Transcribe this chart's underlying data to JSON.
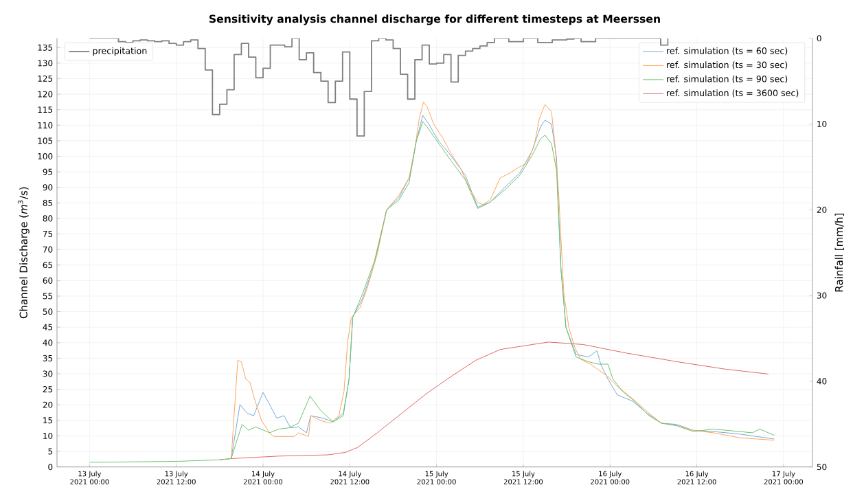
{
  "chart_data": {
    "type": "line",
    "title": "Sensitivity analysis channel discharge for different timesteps at Meerssen",
    "ylabel": "Channel Discharge (*m*$^{3}$/s)",
    "y2label": "Rainfall [mm/h]",
    "xlim": [
      "2021-07-12T19:30",
      "2021-07-17T04:00"
    ],
    "xticks": [
      {
        "value": "2021-07-13T00:00",
        "label": "13 July 2021 00:00"
      },
      {
        "value": "2021-07-13T12:00",
        "label": "13 July 2021 12:00"
      },
      {
        "value": "2021-07-14T00:00",
        "label": "14 July 2021 00:00"
      },
      {
        "value": "2021-07-14T12:00",
        "label": "14 July 2021 12:00"
      },
      {
        "value": "2021-07-15T00:00",
        "label": "15 July 2021 00:00"
      },
      {
        "value": "2021-07-15T12:00",
        "label": "15 July 2021 12:00"
      },
      {
        "value": "2021-07-16T00:00",
        "label": "16 July 2021 00:00"
      },
      {
        "value": "2021-07-16T12:00",
        "label": "16 July 2021 12:00"
      },
      {
        "value": "2021-07-17T00:00",
        "label": "17 July 2021 00:00"
      }
    ],
    "ylim": [
      0,
      138
    ],
    "yticks": [
      0,
      5,
      10,
      15,
      20,
      25,
      30,
      35,
      40,
      45,
      50,
      55,
      60,
      65,
      70,
      75,
      80,
      85,
      90,
      95,
      100,
      105,
      110,
      115,
      120,
      125,
      130,
      135
    ],
    "y2lim": [
      50,
      0
    ],
    "y2ticks": [
      0,
      10,
      20,
      30,
      40,
      50
    ],
    "grid": true,
    "legend": "top right",
    "series": [
      {
        "name": "precipitation",
        "type": "step",
        "axis": "y2",
        "color": "#808080",
        "x": [
          "2021-07-13T00:00",
          "2021-07-13T01:00",
          "2021-07-13T02:00",
          "2021-07-13T03:00",
          "2021-07-13T04:00",
          "2021-07-13T05:00",
          "2021-07-13T06:00",
          "2021-07-13T07:00",
          "2021-07-13T08:00",
          "2021-07-13T09:00",
          "2021-07-13T10:00",
          "2021-07-13T11:00",
          "2021-07-13T12:00",
          "2021-07-13T13:00",
          "2021-07-13T14:00",
          "2021-07-13T15:00",
          "2021-07-13T16:00",
          "2021-07-13T17:00",
          "2021-07-13T18:00",
          "2021-07-13T19:00",
          "2021-07-13T20:00",
          "2021-07-13T21:00",
          "2021-07-13T22:00",
          "2021-07-13T23:00",
          "2021-07-14T00:00",
          "2021-07-14T01:00",
          "2021-07-14T02:00",
          "2021-07-14T03:00",
          "2021-07-14T04:00",
          "2021-07-14T05:00",
          "2021-07-14T06:00",
          "2021-07-14T07:00",
          "2021-07-14T08:00",
          "2021-07-14T09:00",
          "2021-07-14T10:00",
          "2021-07-14T11:00",
          "2021-07-14T12:00",
          "2021-07-14T13:00",
          "2021-07-14T14:00",
          "2021-07-14T15:00",
          "2021-07-14T16:00",
          "2021-07-14T17:00",
          "2021-07-14T18:00",
          "2021-07-14T19:00",
          "2021-07-14T20:00",
          "2021-07-14T21:00",
          "2021-07-14T22:00",
          "2021-07-14T23:00",
          "2021-07-15T00:00",
          "2021-07-15T01:00",
          "2021-07-15T02:00",
          "2021-07-15T03:00",
          "2021-07-15T04:00",
          "2021-07-15T05:00",
          "2021-07-15T06:00",
          "2021-07-15T07:00",
          "2021-07-15T08:00",
          "2021-07-15T09:00",
          "2021-07-15T10:00",
          "2021-07-15T11:00",
          "2021-07-15T12:00",
          "2021-07-15T13:00",
          "2021-07-15T14:00",
          "2021-07-15T15:00",
          "2021-07-15T16:00",
          "2021-07-15T17:00",
          "2021-07-15T18:00",
          "2021-07-15T19:00",
          "2021-07-15T20:00",
          "2021-07-15T21:00",
          "2021-07-15T22:00",
          "2021-07-15T23:00",
          "2021-07-16T00:00",
          "2021-07-16T01:00",
          "2021-07-16T02:00",
          "2021-07-16T03:00",
          "2021-07-16T04:00",
          "2021-07-16T05:00",
          "2021-07-16T06:00",
          "2021-07-16T07:00",
          "2021-07-16T08:00"
        ],
        "values": [
          0,
          0,
          0,
          0,
          0.4,
          0.5,
          0.3,
          0.2,
          0.3,
          0.4,
          0.3,
          0.6,
          0.8,
          0.4,
          0.2,
          1.2,
          3.7,
          8.9,
          7.7,
          6.0,
          1.9,
          0.6,
          2.2,
          4.6,
          3.5,
          0.8,
          0.8,
          1.0,
          0,
          2.5,
          1.7,
          4.0,
          5.0,
          7.5,
          5.0,
          1.6,
          7.1,
          11.4,
          6.2,
          0.3,
          0,
          0.2,
          1.2,
          4.2,
          7.1,
          2.5,
          0.8,
          3.0,
          2.9,
          1.9,
          5.1,
          2.0,
          1.5,
          1.2,
          0.9,
          0.5,
          0,
          0,
          0.4,
          0.4,
          0,
          0,
          0.5,
          0.5,
          0.2,
          0.2,
          0.1,
          0,
          0.4,
          0.4,
          0,
          0,
          0,
          0,
          0,
          0,
          0,
          0,
          0,
          0.8,
          0
        ]
      },
      {
        "name": "ref. simulation (ts = 60 sec)",
        "color": "#74a9d8",
        "x": [
          "2021-07-13T18:00",
          "2021-07-13T19:36",
          "2021-07-13T20:48",
          "2021-07-13T21:48",
          "2021-07-13T22:42",
          "2021-07-14T00:00",
          "2021-07-14T01:00",
          "2021-07-14T01:54",
          "2021-07-14T02:54",
          "2021-07-14T03:48",
          "2021-07-14T04:54",
          "2021-07-14T06:00",
          "2021-07-14T06:36",
          "2021-07-14T08:18",
          "2021-07-14T09:42",
          "2021-07-14T11:06",
          "2021-07-14T11:54",
          "2021-07-14T12:24",
          "2021-07-14T13:48",
          "2021-07-14T15:24",
          "2021-07-14T17:06",
          "2021-07-14T18:48",
          "2021-07-14T20:12",
          "2021-07-14T21:12",
          "2021-07-14T22:06",
          "2021-07-14T22:54",
          "2021-07-15T00:18",
          "2021-07-15T02:00",
          "2021-07-15T04:00",
          "2021-07-15T05:42",
          "2021-07-15T07:24",
          "2021-07-15T09:24",
          "2021-07-15T11:30",
          "2021-07-15T13:12",
          "2021-07-15T14:24",
          "2021-07-15T15:00",
          "2021-07-15T15:54",
          "2021-07-15T16:36",
          "2021-07-15T17:12",
          "2021-07-15T17:54",
          "2021-07-15T19:18",
          "2021-07-15T21:00",
          "2021-07-15T22:12",
          "2021-07-15T22:42",
          "2021-07-15T23:42",
          "2021-07-16T01:00",
          "2021-07-16T03:06",
          "2021-07-16T05:06",
          "2021-07-16T07:06",
          "2021-07-16T09:12",
          "2021-07-16T11:30",
          "2021-07-16T14:18",
          "2021-07-16T17:54",
          "2021-07-16T22:42"
        ],
        "values": [
          2.3,
          2.7,
          20.1,
          17.3,
          16.5,
          24.0,
          19.7,
          15.7,
          16.5,
          12.6,
          12.9,
          11.0,
          16.5,
          15.7,
          14.5,
          17.3,
          28.3,
          48.1,
          54.4,
          65.4,
          82.8,
          86.7,
          93.0,
          104.9,
          113.2,
          110.4,
          104.9,
          100.2,
          93.8,
          83.6,
          85.2,
          89.9,
          94.6,
          101.7,
          109.6,
          111.6,
          110.4,
          99.4,
          63.9,
          44.9,
          36.2,
          35.4,
          37.4,
          33.1,
          28.3,
          23.2,
          21.2,
          17.3,
          14.1,
          13.7,
          11.8,
          11.4,
          10.6,
          9.0
        ]
      },
      {
        "name": "ref. simulation (ts = 30 sec)",
        "color": "#ffa55c",
        "x": [
          "2021-07-13T18:00",
          "2021-07-13T19:36",
          "2021-07-13T20:30",
          "2021-07-13T21:00",
          "2021-07-13T21:36",
          "2021-07-13T22:12",
          "2021-07-13T22:48",
          "2021-07-13T23:48",
          "2021-07-14T00:54",
          "2021-07-14T01:30",
          "2021-07-14T04:18",
          "2021-07-14T04:54",
          "2021-07-14T06:18",
          "2021-07-14T06:36",
          "2021-07-14T08:00",
          "2021-07-14T09:18",
          "2021-07-14T10:30",
          "2021-07-14T11:12",
          "2021-07-14T11:42",
          "2021-07-14T12:12",
          "2021-07-14T13:24",
          "2021-07-14T14:24",
          "2021-07-14T15:48",
          "2021-07-14T17:06",
          "2021-07-14T18:48",
          "2021-07-14T20:12",
          "2021-07-14T20:54",
          "2021-07-14T21:36",
          "2021-07-14T22:12",
          "2021-07-14T22:42",
          "2021-07-14T23:36",
          "2021-07-15T00:54",
          "2021-07-15T02:00",
          "2021-07-15T03:18",
          "2021-07-15T04:42",
          "2021-07-15T05:42",
          "2021-07-15T06:24",
          "2021-07-15T07:24",
          "2021-07-15T08:48",
          "2021-07-15T10:06",
          "2021-07-15T11:30",
          "2021-07-15T12:30",
          "2021-07-15T13:30",
          "2021-07-15T14:12",
          "2021-07-15T15:00",
          "2021-07-15T15:54",
          "2021-07-15T16:24",
          "2021-07-15T16:54",
          "2021-07-15T17:36",
          "2021-07-15T18:18",
          "2021-07-15T19:06",
          "2021-07-15T19:54",
          "2021-07-15T21:18",
          "2021-07-15T23:42",
          "2021-07-16T01:00",
          "2021-07-16T03:06",
          "2021-07-16T05:24",
          "2021-07-16T07:06",
          "2021-07-16T09:12",
          "2021-07-16T11:30",
          "2021-07-16T14:18",
          "2021-07-16T17:54",
          "2021-07-16T22:42"
        ],
        "values": [
          2.3,
          2.7,
          34.3,
          33.9,
          28.3,
          27.2,
          22.0,
          14.9,
          11.0,
          9.8,
          9.8,
          11.0,
          9.8,
          16.5,
          14.9,
          14.1,
          16.5,
          24.4,
          40.2,
          48.1,
          51.2,
          57.5,
          68.6,
          82.8,
          87.5,
          93.0,
          100.9,
          112.0,
          117.5,
          115.9,
          110.4,
          105.7,
          100.9,
          96.2,
          89.1,
          85.2,
          84.4,
          85.9,
          93.0,
          94.6,
          96.6,
          97.8,
          103.3,
          112.0,
          116.7,
          114.4,
          103.3,
          87.5,
          56.0,
          44.9,
          38.6,
          34.7,
          33.1,
          29.1,
          26.0,
          22.0,
          17.3,
          14.1,
          13.3,
          11.8,
          11.0,
          9.4,
          8.6
        ]
      },
      {
        "name": "ref. simulation (ts = 90 sec)",
        "color": "#6cc36c",
        "x": [
          "2021-07-13T00:00",
          "2021-07-13T12:00",
          "2021-07-13T18:00",
          "2021-07-13T19:36",
          "2021-07-13T20:30",
          "2021-07-13T21:06",
          "2021-07-13T22:00",
          "2021-07-13T23:00",
          "2021-07-14T00:54",
          "2021-07-14T02:12",
          "2021-07-14T03:36",
          "2021-07-14T04:54",
          "2021-07-14T06:30",
          "2021-07-14T08:00",
          "2021-07-14T09:42",
          "2021-07-14T11:06",
          "2021-07-14T11:54",
          "2021-07-14T12:24",
          "2021-07-14T13:48",
          "2021-07-14T15:24",
          "2021-07-14T17:06",
          "2021-07-14T18:48",
          "2021-07-14T20:12",
          "2021-07-14T21:12",
          "2021-07-14T22:06",
          "2021-07-14T22:54",
          "2021-07-15T00:18",
          "2021-07-15T02:00",
          "2021-07-15T04:00",
          "2021-07-15T05:42",
          "2021-07-15T07:24",
          "2021-07-15T09:24",
          "2021-07-15T11:30",
          "2021-07-15T13:12",
          "2021-07-15T14:24",
          "2021-07-15T15:00",
          "2021-07-15T15:54",
          "2021-07-15T16:36",
          "2021-07-15T17:12",
          "2021-07-15T17:54",
          "2021-07-15T19:18",
          "2021-07-15T21:00",
          "2021-07-15T22:18",
          "2021-07-15T23:42",
          "2021-07-16T00:24",
          "2021-07-16T01:42",
          "2021-07-16T03:42",
          "2021-07-16T05:24",
          "2021-07-16T07:06",
          "2021-07-16T09:12",
          "2021-07-16T11:30",
          "2021-07-16T14:18",
          "2021-07-16T17:54",
          "2021-07-16T19:42",
          "2021-07-16T20:42",
          "2021-07-16T22:42"
        ],
        "values": [
          1.5,
          1.8,
          2.3,
          2.7,
          9.4,
          13.7,
          11.8,
          12.9,
          11.0,
          12.2,
          12.6,
          14.1,
          22.8,
          18.1,
          14.5,
          16.5,
          28.3,
          48.1,
          56.0,
          66.2,
          82.8,
          85.9,
          91.5,
          104.9,
          111.2,
          108.8,
          104.1,
          98.6,
          92.3,
          83.2,
          85.2,
          89.1,
          93.8,
          100.2,
          105.7,
          106.8,
          104.1,
          95.4,
          63.9,
          44.9,
          35.4,
          33.9,
          33.1,
          33.1,
          28.3,
          24.4,
          20.5,
          16.5,
          14.1,
          13.3,
          11.4,
          12.2,
          11.4,
          11.0,
          12.2,
          10.2
        ]
      },
      {
        "name": "ref. simulation (ts = 3600 sec)",
        "color": "#e06666",
        "x": [
          "2021-07-13T19:36",
          "2021-07-14T02:12",
          "2021-07-14T09:00",
          "2021-07-14T11:24",
          "2021-07-14T13:06",
          "2021-07-14T15:48",
          "2021-07-14T19:12",
          "2021-07-14T22:36",
          "2021-07-15T02:00",
          "2021-07-15T05:24",
          "2021-07-15T08:48",
          "2021-07-15T12:06",
          "2021-07-15T15:30",
          "2021-07-15T20:18",
          "2021-07-16T02:24",
          "2021-07-16T09:12",
          "2021-07-16T15:54",
          "2021-07-16T21:54"
        ],
        "values": [
          2.7,
          3.5,
          3.9,
          4.7,
          6.3,
          11.0,
          17.3,
          23.6,
          29.1,
          34.3,
          37.8,
          39.0,
          40.2,
          39.4,
          36.6,
          33.9,
          31.5,
          29.9
        ]
      }
    ]
  }
}
